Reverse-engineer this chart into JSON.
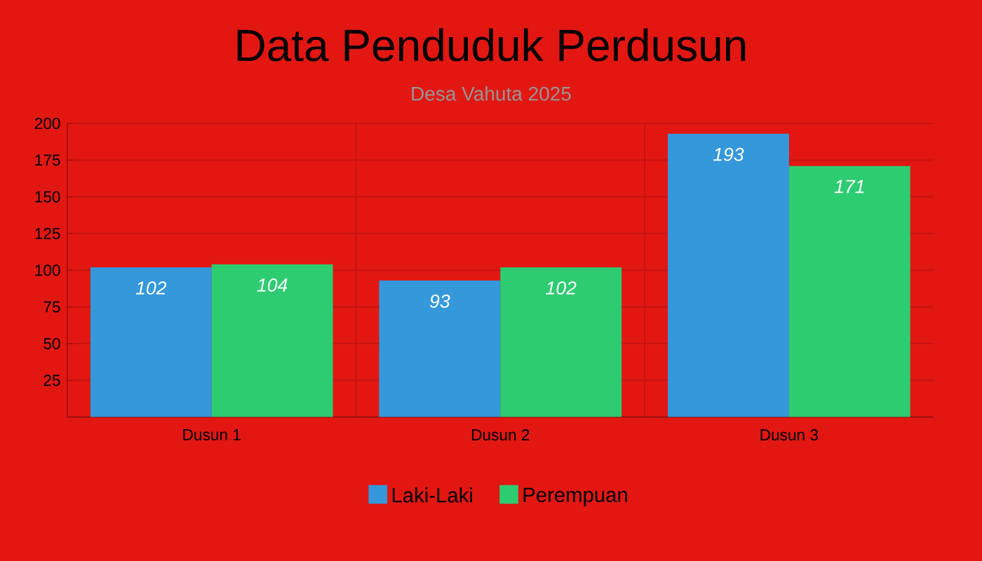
{
  "chart_data": {
    "type": "bar",
    "title": "Data Penduduk Perdusun",
    "subtitle": "Desa Vahuta 2025",
    "categories": [
      "Dusun 1",
      "Dusun 2",
      "Dusun 3"
    ],
    "series": [
      {
        "name": "Laki-Laki",
        "color": "#3498db",
        "values": [
          102,
          93,
          193
        ]
      },
      {
        "name": "Perempuan",
        "color": "#2ecc71",
        "values": [
          104,
          102,
          171
        ]
      }
    ],
    "ylim": [
      0,
      200
    ],
    "yticks": [
      {
        "value": 0,
        "label": null
      },
      25,
      50,
      75,
      100,
      125,
      150,
      175,
      200
    ],
    "grid": true,
    "legend": "bottom",
    "data_labels": true
  }
}
